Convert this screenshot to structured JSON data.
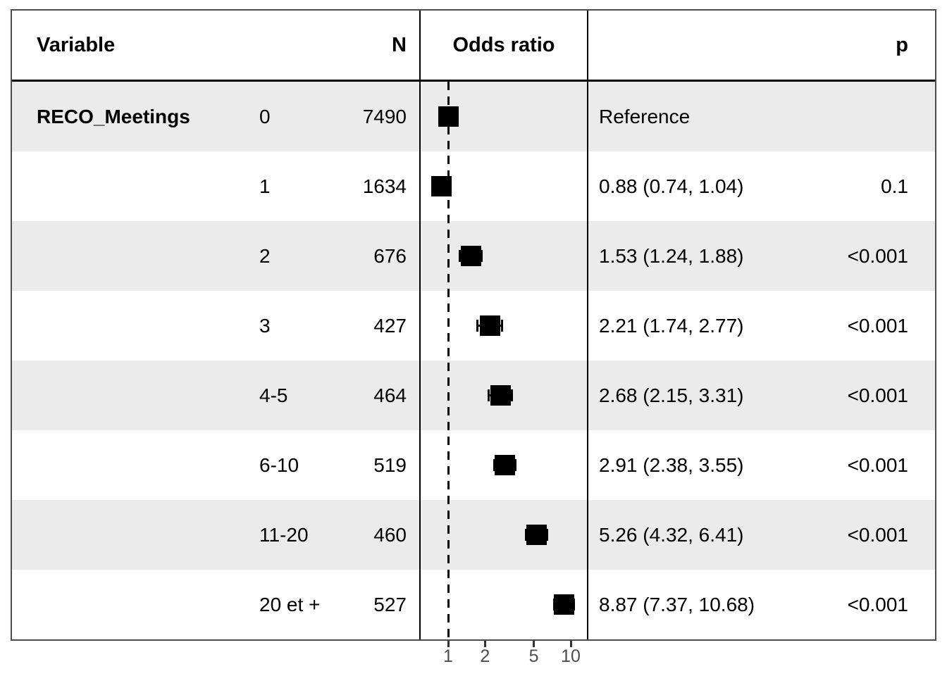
{
  "figure": {
    "header": {
      "variable": "Variable",
      "n": "N",
      "odds_ratio": "Odds ratio",
      "p": "p"
    }
  },
  "colors": {
    "stripe": "#ebebeb",
    "axis_text": "#4d4d4d",
    "marker": "#000000",
    "grid_line": "#000000",
    "outer_border": "#4d4d4d"
  },
  "chart_data": {
    "type": "forest",
    "title": "",
    "variable": "RECO_Meetings",
    "x_scale": "log10",
    "x_ticks": [
      1,
      2,
      5,
      10
    ],
    "x_tick_labels": [
      "1",
      "2",
      "5",
      "10"
    ],
    "reference_line": 1,
    "xlim": [
      0.58,
      13.5
    ],
    "legend": "none",
    "rows": [
      {
        "group": "RECO_Meetings",
        "level": "0",
        "n": "7490",
        "or": 1.0,
        "ci_low": null,
        "ci_high": null,
        "estimate_label": "Reference",
        "p": ""
      },
      {
        "group": "",
        "level": "1",
        "n": "1634",
        "or": 0.88,
        "ci_low": 0.74,
        "ci_high": 1.04,
        "estimate_label": "0.88 (0.74, 1.04)",
        "p": "0.1"
      },
      {
        "group": "",
        "level": "2",
        "n": "676",
        "or": 1.53,
        "ci_low": 1.24,
        "ci_high": 1.88,
        "estimate_label": "1.53 (1.24, 1.88)",
        "p": "<0.001"
      },
      {
        "group": "",
        "level": "3",
        "n": "427",
        "or": 2.21,
        "ci_low": 1.74,
        "ci_high": 2.77,
        "estimate_label": "2.21 (1.74, 2.77)",
        "p": "<0.001"
      },
      {
        "group": "",
        "level": "4-5",
        "n": "464",
        "or": 2.68,
        "ci_low": 2.15,
        "ci_high": 3.31,
        "estimate_label": "2.68 (2.15, 3.31)",
        "p": "<0.001"
      },
      {
        "group": "",
        "level": "6-10",
        "n": "519",
        "or": 2.91,
        "ci_low": 2.38,
        "ci_high": 3.55,
        "estimate_label": "2.91 (2.38, 3.55)",
        "p": "<0.001"
      },
      {
        "group": "",
        "level": "11-20",
        "n": "460",
        "or": 5.26,
        "ci_low": 4.32,
        "ci_high": 6.41,
        "estimate_label": "5.26 (4.32, 6.41)",
        "p": "<0.001"
      },
      {
        "group": "",
        "level": "20 et +",
        "n": "527",
        "or": 8.87,
        "ci_low": 7.37,
        "ci_high": 10.68,
        "estimate_label": "8.87 (7.37, 10.68)",
        "p": "<0.001"
      }
    ]
  }
}
